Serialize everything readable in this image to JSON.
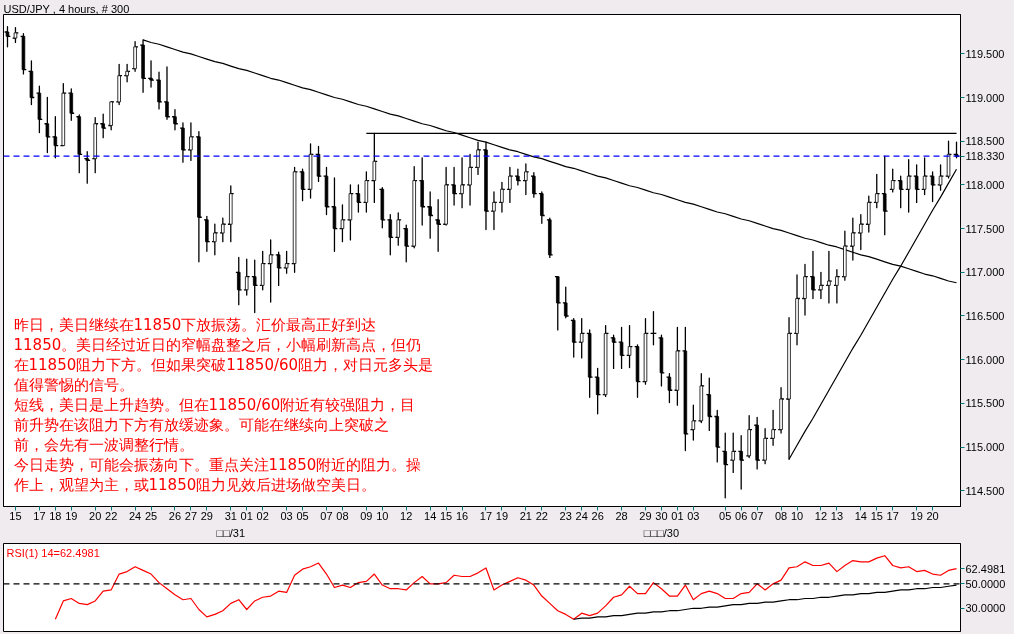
{
  "chart_data": [
    {
      "type": "candlestick",
      "title": "USD/JPY , 4 hours, # 300",
      "color": "#000000",
      "categories": [
        null,
        "15",
        null,
        null,
        "17",
        null,
        "18",
        null,
        "19",
        null,
        null,
        "20",
        null,
        "22",
        null,
        null,
        "24",
        null,
        "25",
        null,
        null,
        "26",
        null,
        "27",
        null,
        "29",
        null,
        null,
        "31",
        null,
        "01",
        null,
        "02",
        null,
        null,
        "03",
        null,
        "05",
        null,
        null,
        "07",
        null,
        "08",
        null,
        null,
        "09",
        null,
        "10",
        null,
        null,
        "12",
        null,
        null,
        "14",
        null,
        "15",
        null,
        "16",
        null,
        null,
        "17",
        null,
        "19",
        null,
        null,
        "21",
        null,
        "22",
        null,
        null,
        "23",
        null,
        "24",
        null,
        "26",
        null,
        null,
        "28",
        null,
        null,
        "29",
        null,
        "30",
        null,
        "01",
        null,
        "03",
        null,
        null,
        null,
        "05",
        null,
        "06",
        null,
        "07",
        null,
        null,
        "08",
        null,
        "10",
        null,
        null,
        "12",
        null,
        "13",
        null,
        null,
        "14",
        null,
        "15",
        null,
        "17",
        null,
        null,
        "19",
        null,
        "20",
        null,
        null,
        null
      ],
      "ohlc": [
        [
          119.75,
          119.81,
          119.58,
          119.7
        ],
        [
          119.68,
          119.8,
          119.63,
          119.74
        ],
        [
          119.7,
          119.73,
          119.27,
          119.32
        ],
        [
          119.3,
          119.42,
          118.92,
          119.0
        ],
        [
          119.05,
          119.13,
          118.6,
          118.75
        ],
        [
          118.7,
          119.0,
          118.37,
          118.55
        ],
        [
          118.55,
          118.78,
          118.31,
          118.45
        ],
        [
          118.45,
          119.16,
          118.45,
          119.05
        ],
        [
          119.05,
          119.1,
          118.74,
          118.82
        ],
        [
          118.78,
          118.8,
          118.14,
          118.35
        ],
        [
          118.3,
          118.38,
          118.02,
          118.28
        ],
        [
          118.3,
          118.77,
          118.14,
          118.7
        ],
        [
          118.7,
          118.81,
          118.54,
          118.65
        ],
        [
          118.68,
          118.95,
          118.63,
          118.95
        ],
        [
          118.95,
          119.38,
          118.92,
          119.25
        ],
        [
          119.25,
          119.38,
          119.18,
          119.3
        ],
        [
          119.33,
          119.64,
          119.3,
          119.58
        ],
        [
          119.6,
          119.66,
          119.06,
          119.22
        ],
        [
          119.22,
          119.42,
          119.12,
          119.2
        ],
        [
          119.2,
          119.29,
          118.87,
          118.95
        ],
        [
          118.95,
          119.35,
          118.75,
          118.78
        ],
        [
          118.78,
          118.86,
          118.63,
          118.7
        ],
        [
          118.65,
          118.71,
          118.26,
          118.4
        ],
        [
          118.4,
          118.71,
          118.28,
          118.55
        ],
        [
          118.55,
          118.61,
          117.12,
          117.63
        ],
        [
          117.6,
          117.64,
          117.24,
          117.35
        ],
        [
          117.35,
          117.55,
          117.2,
          117.45
        ],
        [
          117.45,
          117.62,
          117.35,
          117.55
        ],
        [
          117.55,
          117.99,
          117.35,
          117.9
        ],
        [
          117.0,
          117.17,
          116.63,
          116.8
        ],
        [
          116.8,
          117.15,
          116.74,
          116.95
        ],
        [
          116.95,
          117.14,
          116.54,
          116.85
        ],
        [
          116.85,
          117.24,
          116.8,
          117.1
        ],
        [
          117.1,
          117.37,
          116.66,
          117.2
        ],
        [
          117.2,
          117.23,
          116.85,
          117.05
        ],
        [
          117.05,
          117.24,
          116.99,
          117.1
        ],
        [
          117.1,
          118.2,
          117.0,
          118.15
        ],
        [
          118.15,
          118.18,
          117.82,
          117.95
        ],
        [
          117.95,
          118.47,
          117.85,
          118.35
        ],
        [
          118.35,
          118.44,
          118.04,
          118.1
        ],
        [
          118.1,
          118.2,
          117.66,
          117.75
        ],
        [
          117.75,
          118.08,
          117.24,
          117.5
        ],
        [
          117.5,
          117.77,
          117.35,
          117.6
        ],
        [
          117.6,
          118.0,
          117.37,
          117.9
        ],
        [
          117.9,
          118.0,
          117.69,
          117.8
        ],
        [
          117.8,
          118.15,
          117.69,
          118.05
        ],
        [
          118.05,
          118.59,
          117.8,
          118.27
        ],
        [
          117.95,
          117.97,
          117.51,
          117.6
        ],
        [
          117.6,
          117.66,
          117.2,
          117.4
        ],
        [
          117.4,
          117.68,
          117.31,
          117.6
        ],
        [
          117.5,
          117.54,
          117.12,
          117.3
        ],
        [
          117.3,
          118.21,
          117.28,
          118.05
        ],
        [
          118.05,
          118.31,
          117.54,
          117.75
        ],
        [
          117.75,
          117.92,
          117.39,
          117.65
        ],
        [
          117.6,
          117.83,
          117.24,
          117.55
        ],
        [
          117.55,
          118.2,
          117.54,
          118.0
        ],
        [
          118.0,
          118.2,
          117.77,
          117.9
        ],
        [
          117.9,
          118.31,
          117.74,
          118.0
        ],
        [
          118.0,
          118.35,
          117.77,
          118.2
        ],
        [
          118.2,
          118.49,
          118.12,
          118.4
        ],
        [
          118.4,
          118.49,
          117.49,
          117.7
        ],
        [
          117.7,
          117.92,
          117.49,
          117.8
        ],
        [
          117.8,
          118.03,
          117.69,
          117.95
        ],
        [
          117.95,
          118.2,
          117.8,
          118.1
        ],
        [
          118.1,
          118.18,
          118.0,
          118.05
        ],
        [
          118.05,
          118.24,
          117.89,
          118.15
        ],
        [
          118.1,
          118.14,
          117.86,
          117.9
        ],
        [
          117.9,
          117.92,
          117.56,
          117.65
        ],
        [
          117.6,
          117.62,
          117.17,
          117.2
        ],
        [
          116.95,
          116.95,
          116.34,
          116.65
        ],
        [
          116.65,
          116.83,
          116.48,
          116.5
        ],
        [
          116.45,
          116.47,
          116.03,
          116.2
        ],
        [
          116.2,
          116.47,
          116.02,
          116.3
        ],
        [
          116.3,
          116.34,
          115.57,
          115.8
        ],
        [
          115.8,
          115.9,
          115.38,
          115.6
        ],
        [
          115.6,
          116.39,
          115.58,
          116.3
        ],
        [
          116.25,
          116.28,
          115.9,
          116.2
        ],
        [
          116.2,
          116.37,
          115.9,
          116.05
        ],
        [
          116.05,
          116.39,
          115.91,
          116.15
        ],
        [
          116.15,
          116.17,
          115.57,
          115.75
        ],
        [
          115.75,
          116.47,
          115.72,
          116.3
        ],
        [
          116.3,
          116.55,
          116.17,
          116.3
        ],
        [
          116.25,
          116.28,
          115.7,
          115.85
        ],
        [
          115.8,
          115.84,
          115.51,
          115.65
        ],
        [
          115.65,
          116.37,
          115.48,
          116.1
        ],
        [
          116.1,
          116.37,
          114.96,
          115.15
        ],
        [
          115.2,
          115.48,
          115.08,
          115.3
        ],
        [
          115.3,
          115.84,
          115.28,
          115.7
        ],
        [
          115.6,
          115.79,
          115.19,
          115.35
        ],
        [
          115.35,
          115.42,
          114.83,
          115.0
        ],
        [
          114.95,
          115.16,
          114.42,
          114.8
        ],
        [
          114.85,
          115.16,
          114.71,
          114.95
        ],
        [
          114.95,
          115.13,
          114.52,
          114.85
        ],
        [
          114.9,
          115.36,
          114.88,
          115.2
        ],
        [
          115.25,
          115.34,
          114.75,
          114.85
        ],
        [
          114.85,
          115.21,
          114.81,
          115.1
        ],
        [
          115.1,
          115.42,
          115.02,
          115.2
        ],
        [
          115.2,
          115.68,
          115.16,
          115.55
        ],
        [
          115.55,
          116.48,
          114.86,
          116.3
        ],
        [
          116.3,
          116.97,
          116.17,
          116.7
        ],
        [
          116.7,
          117.09,
          116.51,
          116.95
        ],
        [
          116.95,
          117.24,
          116.7,
          116.8
        ],
        [
          116.8,
          117.0,
          116.7,
          116.85
        ],
        [
          116.85,
          117.24,
          116.65,
          116.9
        ],
        [
          116.85,
          117.03,
          116.65,
          116.95
        ],
        [
          116.95,
          117.47,
          116.91,
          117.3
        ],
        [
          117.3,
          117.62,
          117.14,
          117.45
        ],
        [
          117.45,
          117.66,
          117.26,
          117.55
        ],
        [
          117.55,
          117.87,
          117.46,
          117.8
        ],
        [
          117.8,
          118.12,
          117.74,
          117.9
        ],
        [
          117.9,
          118.33,
          117.43,
          117.7
        ],
        [
          117.95,
          118.18,
          117.92,
          118.05
        ],
        [
          118.05,
          118.1,
          117.74,
          117.95
        ],
        [
          117.95,
          118.29,
          117.69,
          118.1
        ],
        [
          118.1,
          118.23,
          117.8,
          117.95
        ],
        [
          117.95,
          118.31,
          117.89,
          118.1
        ],
        [
          118.1,
          118.15,
          117.81,
          118.0
        ],
        [
          118.0,
          118.23,
          117.94,
          118.1
        ],
        [
          118.1,
          118.5,
          118.08,
          118.35
        ],
        [
          118.35,
          118.49,
          118.31,
          118.33
        ]
      ],
      "series": [
        {
          "type": "line",
          "color": "#000000",
          "values": [
            null,
            null,
            null,
            null,
            null,
            null,
            null,
            null,
            null,
            null,
            null,
            null,
            null,
            null,
            null,
            null,
            null,
            119.66,
            119.63,
            119.61,
            119.58,
            119.55,
            119.52,
            119.5,
            119.47,
            119.44,
            119.41,
            119.39,
            119.36,
            119.33,
            119.31,
            119.28,
            119.25,
            119.22,
            119.2,
            119.17,
            119.14,
            119.11,
            119.09,
            119.06,
            119.03,
            119.0,
            118.98,
            118.95,
            118.92,
            118.9,
            118.87,
            118.84,
            118.81,
            118.79,
            118.76,
            118.73,
            118.7,
            118.68,
            118.65,
            118.62,
            118.6,
            118.57,
            118.54,
            118.51,
            118.49,
            118.46,
            118.43,
            118.4,
            118.38,
            118.35,
            118.32,
            118.3,
            118.27,
            118.24,
            118.21,
            118.19,
            118.16,
            118.13,
            118.1,
            118.08,
            118.05,
            118.02,
            117.99,
            117.97,
            117.94,
            117.91,
            117.89,
            117.86,
            117.83,
            117.8,
            117.78,
            117.75,
            117.72,
            117.69,
            117.67,
            117.64,
            117.61,
            117.59,
            117.56,
            117.53,
            117.5,
            117.48,
            117.45,
            117.42,
            117.39,
            117.37,
            117.34,
            117.31,
            117.29,
            117.26,
            117.23,
            117.2,
            117.18,
            117.15,
            117.12,
            117.09,
            117.07,
            117.04,
            117.01,
            116.98,
            116.96,
            116.93,
            116.9,
            116.88
          ]
        },
        {
          "type": "line",
          "color": "#000000",
          "values": [
            null,
            null,
            null,
            null,
            null,
            null,
            null,
            null,
            null,
            null,
            null,
            null,
            null,
            null,
            null,
            null,
            null,
            null,
            null,
            null,
            null,
            null,
            null,
            null,
            null,
            null,
            null,
            null,
            null,
            null,
            null,
            null,
            null,
            null,
            null,
            null,
            null,
            null,
            null,
            null,
            null,
            null,
            null,
            null,
            null,
            118.59,
            118.59,
            118.59,
            118.59,
            118.59,
            118.59,
            118.59,
            118.59,
            118.59,
            118.59,
            118.59,
            118.59,
            118.59,
            118.59,
            118.59,
            118.59,
            118.59,
            118.59,
            118.59,
            118.59,
            118.59,
            118.59,
            118.59,
            118.59,
            118.59,
            118.59,
            118.59,
            118.59,
            118.59,
            118.59,
            118.59,
            118.59,
            118.59,
            118.59,
            118.59,
            118.59,
            118.59,
            118.59,
            118.59,
            118.59,
            118.59,
            118.59,
            118.59,
            118.59,
            118.59,
            118.59,
            118.59,
            118.59,
            118.59,
            118.59,
            118.59,
            118.59,
            118.59,
            118.59,
            118.59,
            118.59,
            118.59,
            118.59,
            118.59,
            118.59,
            118.59,
            118.59,
            118.59,
            118.59,
            118.59,
            118.59,
            118.59,
            118.59,
            118.59,
            118.59,
            118.59,
            118.59,
            118.59,
            118.59,
            118.59
          ]
        },
        {
          "type": "line",
          "color": "#000000",
          "values": [
            null,
            null,
            null,
            null,
            null,
            null,
            null,
            null,
            null,
            null,
            null,
            null,
            null,
            null,
            null,
            null,
            null,
            null,
            null,
            null,
            null,
            null,
            null,
            null,
            null,
            null,
            null,
            null,
            null,
            null,
            null,
            null,
            null,
            null,
            null,
            null,
            null,
            null,
            null,
            null,
            null,
            null,
            null,
            null,
            null,
            null,
            null,
            null,
            null,
            null,
            null,
            null,
            null,
            null,
            null,
            null,
            null,
            null,
            null,
            null,
            null,
            null,
            null,
            null,
            null,
            null,
            null,
            null,
            null,
            null,
            null,
            null,
            null,
            null,
            null,
            null,
            null,
            null,
            null,
            null,
            null,
            null,
            null,
            null,
            null,
            null,
            null,
            null,
            null,
            null,
            null,
            null,
            null,
            null,
            null,
            null,
            null,
            null,
            114.86,
            115.02,
            115.18,
            115.33,
            115.49,
            115.65,
            115.81,
            115.97,
            116.13,
            116.28,
            116.44,
            116.6,
            116.76,
            116.92,
            117.07,
            117.23,
            117.39,
            117.55,
            117.71,
            117.86,
            118.02,
            118.18
          ]
        }
      ],
      "ylim": [
        114.32,
        119.95
      ],
      "yticks": [
        {
          "value": 114.5,
          "label": "114.500"
        },
        {
          "value": 115.0,
          "label": "115.000"
        },
        {
          "value": 115.5,
          "label": "115.500"
        },
        {
          "value": 116.0,
          "label": "116.000"
        },
        {
          "value": 116.5,
          "label": "116.500"
        },
        {
          "value": 117.0,
          "label": "117.000"
        },
        {
          "value": 117.5,
          "label": "117.500"
        },
        {
          "value": 118.0,
          "label": "118.000"
        },
        {
          "value": 118.5,
          "label": "118.500"
        },
        {
          "value": 119.0,
          "label": "119.000"
        },
        {
          "value": 119.5,
          "label": "119.500"
        }
      ],
      "ref_lines": [
        {
          "axis": "y",
          "value": 118.33,
          "label": "118.330",
          "color": "#0000ff",
          "line_style": "dashed"
        }
      ],
      "annotations": [
        "昨日，美日继续在11850下放振荡。汇价最高正好到达",
        "11850。美日经过近日的窄幅盘整之后，小幅刷新高点，但仍",
        "在11850阻力下方。但如果突破11850/60阻力，对日元多头是",
        "值得警惕的信号。",
        "短线，美日是上升趋势。但在11850/60附近有较强阻力，目",
        "前升势在该阻力下方有放缓迹象。可能在继续向上突破之",
        "前，会先有一波调整行情。",
        "今日走势，可能会振荡向下。重点关注11850附近的阻力。操",
        "作上，观望为主，或11850阻力见效后进场做空美日。",
        "□□/31",
        "□□□/30"
      ]
    },
    {
      "type": "line",
      "title": "RSI(1) 14=62.4981",
      "categories": [
        null,
        null,
        null,
        null,
        null,
        null,
        null,
        null,
        null,
        null,
        null,
        null,
        null,
        null,
        null,
        null,
        null,
        null,
        null,
        null,
        null,
        null,
        null,
        null,
        null,
        null,
        null,
        null,
        null,
        null,
        null,
        null,
        null,
        null,
        null,
        null,
        null,
        null,
        null,
        null,
        null,
        null,
        null,
        null,
        null,
        null,
        null,
        null,
        null,
        null,
        null,
        null,
        null,
        null,
        null,
        null,
        null,
        null,
        null,
        null,
        null,
        null,
        null,
        null,
        null,
        null,
        null,
        null,
        null,
        null,
        null,
        null,
        null,
        null,
        null,
        null,
        null,
        null,
        null,
        null,
        null,
        null,
        null,
        null,
        null,
        null,
        null,
        null,
        null,
        null,
        null,
        null,
        null,
        null,
        null,
        null,
        null,
        null,
        null,
        null,
        null,
        null,
        null,
        null,
        null,
        null,
        null,
        null,
        null,
        null,
        null,
        null,
        null,
        null,
        null,
        null,
        null,
        null,
        null,
        null
      ],
      "series": [
        {
          "color": "#ff0000",
          "values": [
            null,
            null,
            null,
            null,
            null,
            null,
            21,
            36,
            38,
            34,
            33,
            36,
            44,
            45,
            58,
            60,
            64,
            61,
            58,
            51,
            46,
            41,
            37,
            38,
            29,
            23,
            25,
            28,
            34,
            37,
            29,
            36,
            39,
            40,
            44,
            43,
            57,
            62,
            64,
            67,
            58,
            47,
            49,
            47,
            51,
            52,
            58,
            49,
            46,
            46,
            45,
            51,
            56,
            50,
            50,
            51,
            57,
            56,
            56,
            59,
            63,
            45,
            49,
            52,
            55,
            53,
            49,
            40,
            34,
            28,
            25,
            21,
            26,
            24,
            26,
            32,
            39,
            41,
            48,
            42,
            42,
            51,
            46,
            40,
            40,
            49,
            37,
            42,
            44,
            42,
            38,
            38,
            42,
            43,
            50,
            45,
            50,
            53,
            63,
            64,
            68,
            65,
            65,
            67,
            60,
            65,
            69,
            68,
            68,
            71,
            73,
            65,
            63,
            64,
            60,
            61,
            58,
            57,
            61,
            62.4981
          ]
        },
        {
          "type": "line",
          "color": "#000000",
          "values": [
            null,
            null,
            null,
            null,
            null,
            null,
            null,
            null,
            null,
            null,
            null,
            null,
            null,
            null,
            null,
            null,
            null,
            null,
            null,
            null,
            null,
            null,
            null,
            null,
            null,
            null,
            null,
            null,
            null,
            null,
            null,
            null,
            null,
            null,
            null,
            null,
            null,
            null,
            null,
            null,
            null,
            null,
            null,
            null,
            null,
            null,
            null,
            null,
            null,
            null,
            null,
            null,
            null,
            null,
            null,
            null,
            null,
            null,
            null,
            null,
            null,
            null,
            null,
            null,
            null,
            null,
            null,
            null,
            null,
            null,
            null,
            21,
            22,
            22,
            23,
            23,
            24,
            24,
            25,
            26,
            26,
            27,
            27,
            28,
            28,
            29,
            30,
            30,
            31,
            31,
            32,
            33,
            33,
            34,
            34,
            35,
            35,
            36,
            37,
            37,
            38,
            38,
            39,
            39,
            40,
            41,
            41,
            42,
            42,
            43,
            43,
            44,
            45,
            45,
            46,
            46,
            47,
            47,
            48,
            49
          ]
        }
      ],
      "ylim": [
        11,
        83
      ],
      "yticks": [
        {
          "value": 30,
          "label": "30.0000"
        },
        {
          "value": 50,
          "label": "50.0000"
        },
        {
          "value": 62.4981,
          "label": "62.4981"
        }
      ],
      "ref_lines": [
        {
          "axis": "y",
          "value": 50,
          "color": "#000000",
          "line_style": "dashed"
        }
      ],
      "tick_labels": "y"
    }
  ]
}
